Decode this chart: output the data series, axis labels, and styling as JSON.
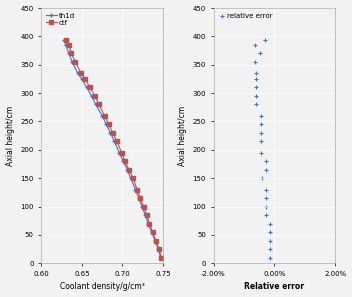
{
  "axial_heights": [
    10,
    25,
    40,
    55,
    70,
    85,
    100,
    115,
    130,
    150,
    165,
    180,
    195,
    215,
    230,
    245,
    260,
    280,
    295,
    310,
    325,
    335,
    355,
    370,
    385,
    393
  ],
  "th1d_density": [
    0.747,
    0.744,
    0.74,
    0.736,
    0.732,
    0.728,
    0.724,
    0.72,
    0.716,
    0.71,
    0.706,
    0.701,
    0.696,
    0.69,
    0.685,
    0.68,
    0.675,
    0.667,
    0.662,
    0.656,
    0.65,
    0.645,
    0.638,
    0.634,
    0.63,
    0.628
  ],
  "ctf_density": [
    0.748,
    0.745,
    0.741,
    0.737,
    0.733,
    0.73,
    0.726,
    0.722,
    0.718,
    0.713,
    0.708,
    0.703,
    0.699,
    0.693,
    0.688,
    0.683,
    0.678,
    0.671,
    0.666,
    0.66,
    0.654,
    0.649,
    0.642,
    0.637,
    0.634,
    0.63
  ],
  "relative_errors": [
    -0.0013,
    -0.0013,
    -0.0013,
    -0.0013,
    -0.0014,
    -0.0027,
    -0.0028,
    -0.0028,
    -0.0028,
    -0.0042,
    -0.0028,
    -0.0028,
    -0.0043,
    -0.0043,
    -0.0043,
    -0.0044,
    -0.0044,
    -0.006,
    -0.006,
    -0.0061,
    -0.0062,
    -0.0062,
    -0.0063,
    -0.0047,
    -0.0063,
    -0.0032
  ],
  "ylim": [
    0,
    450
  ],
  "yticks": [
    0,
    50,
    100,
    150,
    200,
    250,
    300,
    350,
    400,
    450
  ],
  "xlim_density": [
    0.6,
    0.75
  ],
  "xticks_density": [
    0.6,
    0.65,
    0.7,
    0.75
  ],
  "xlim_error": [
    -0.02,
    0.02
  ],
  "xticks_error": [
    -0.02,
    0.0,
    0.02
  ],
  "xlabel_density": "Coolant density/g/cm³",
  "xlabel_error": "Relative error",
  "ylabel": "Axial height/cm",
  "legend1": "th1d",
  "legend2": "ctf",
  "legend3": "relative error",
  "th1d_color": "#4472C4",
  "ctf_color": "#C0504D",
  "error_color": "#4472C4",
  "bg_color": "#F2F2F2",
  "grid_color": "#FFFFFF"
}
